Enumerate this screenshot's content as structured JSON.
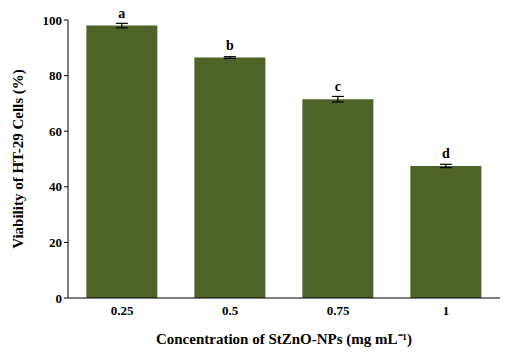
{
  "chart_data": {
    "type": "bar",
    "x_label": "Concentration of StZnO-NPs (mg mL⁻¹)",
    "y_label": "Viability of HT-29 Cells (%)",
    "categories": [
      "0.25",
      "0.5",
      "0.75",
      "1"
    ],
    "values": [
      98,
      86.5,
      71.5,
      47.5
    ],
    "errors": [
      0.8,
      0.3,
      1.0,
      0.6
    ],
    "annotations": [
      "a",
      "b",
      "c",
      "d"
    ],
    "color": "#4f6228",
    "ylim": [
      0,
      100
    ],
    "yticks": [
      0,
      20,
      40,
      60,
      80,
      100
    ],
    "grid": false
  }
}
